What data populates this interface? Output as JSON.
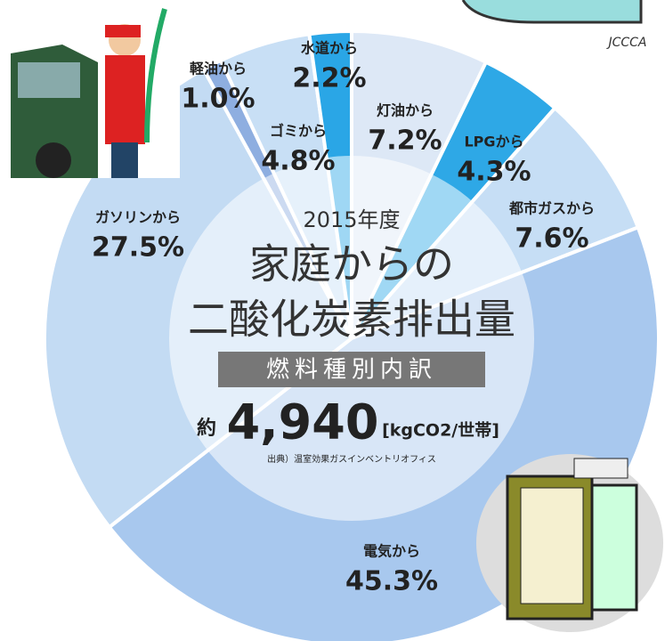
{
  "chart_data": {
    "type": "pie",
    "logo": "JCCCA",
    "year": "2015年度",
    "title_lines": [
      "家庭からの",
      "二酸化炭素排出量"
    ],
    "subtitle": "燃料種別内訳",
    "total_prefix": "約",
    "total": {
      "value": 4940,
      "label": "4,940"
    },
    "total_unit": "[kgCO2/世帯]",
    "source": "出典）温室効果ガスインベントリオフィス",
    "categories": [
      "灯油から",
      "LPGから",
      "都市ガスから",
      "電気から",
      "ガソリンから",
      "軽油から",
      "ゴミから",
      "水道から"
    ],
    "values": [
      7.2,
      4.3,
      7.6,
      45.3,
      27.5,
      1.0,
      4.8,
      2.2
    ],
    "value_labels": [
      "7.2%",
      "4.3%",
      "7.6%",
      "45.3%",
      "27.5%",
      "1.0%",
      "4.8%",
      "2.2%"
    ],
    "colors": [
      "#dde8f6",
      "#2ea8e6",
      "#c6def5",
      "#a8c8ee",
      "#c3dbf3",
      "#8eaee0",
      "#c8dff5",
      "#2aa6e6"
    ]
  }
}
